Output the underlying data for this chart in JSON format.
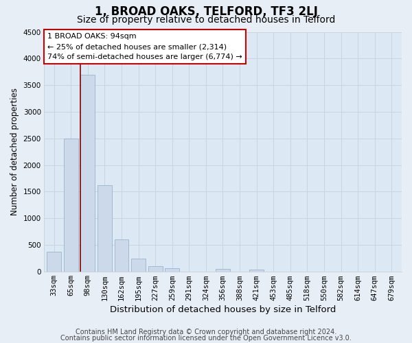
{
  "title": "1, BROAD OAKS, TELFORD, TF3 2LJ",
  "subtitle": "Size of property relative to detached houses in Telford",
  "xlabel": "Distribution of detached houses by size in Telford",
  "ylabel": "Number of detached properties",
  "bar_labels": [
    "33sqm",
    "65sqm",
    "98sqm",
    "130sqm",
    "162sqm",
    "195sqm",
    "227sqm",
    "259sqm",
    "291sqm",
    "324sqm",
    "356sqm",
    "388sqm",
    "421sqm",
    "453sqm",
    "485sqm",
    "518sqm",
    "550sqm",
    "582sqm",
    "614sqm",
    "647sqm",
    "679sqm"
  ],
  "bar_values": [
    375,
    2500,
    3700,
    1625,
    600,
    240,
    100,
    60,
    0,
    0,
    55,
    0,
    40,
    0,
    0,
    0,
    0,
    0,
    0,
    0,
    0
  ],
  "bar_color": "#ccd9ea",
  "bar_edge_color": "#9ab4cc",
  "plot_bg_color": "#dde8f5",
  "outer_bg_color": "#e8eef5",
  "grid_color": "#c8d4e0",
  "red_line_index": 2,
  "ylim": [
    0,
    4500
  ],
  "yticks": [
    0,
    500,
    1000,
    1500,
    2000,
    2500,
    3000,
    3500,
    4000,
    4500
  ],
  "annotation_title": "1 BROAD OAKS: 94sqm",
  "annotation_line1": "← 25% of detached houses are smaller (2,314)",
  "annotation_line2": "74% of semi-detached houses are larger (6,774) →",
  "annotation_box_facecolor": "#ffffff",
  "annotation_box_edgecolor": "#cc0000",
  "footer_line1": "Contains HM Land Registry data © Crown copyright and database right 2024.",
  "footer_line2": "Contains public sector information licensed under the Open Government Licence v3.0.",
  "title_fontsize": 12,
  "subtitle_fontsize": 10,
  "xlabel_fontsize": 9.5,
  "ylabel_fontsize": 8.5,
  "tick_fontsize": 7.5,
  "annotation_fontsize": 8,
  "footer_fontsize": 7
}
